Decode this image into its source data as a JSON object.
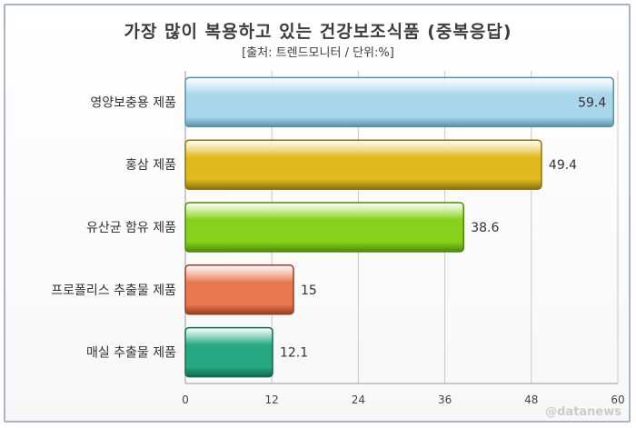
{
  "chart_data": {
    "type": "bar",
    "orientation": "horizontal",
    "title": "가장 많이 복용하고 있는 건강보조식품 (중복응답)",
    "subtitle": "[출처: 트렌드모니터 / 단위:%]",
    "categories": [
      "영양보충용 제품",
      "홍삼 제품",
      "유산균 함유 제품",
      "프로폴리스 추출물 제품",
      "매실 추출물 제품"
    ],
    "values": [
      59.4,
      49.4,
      38.6,
      15,
      12.1
    ],
    "value_labels": [
      "59.4",
      "49.4",
      "38.6",
      "15",
      "12.1"
    ],
    "xlim": [
      0,
      60
    ],
    "xticks": [
      0,
      12,
      24,
      36,
      48,
      60
    ],
    "xtick_labels": [
      "0",
      "12",
      "24",
      "36",
      "48",
      "60"
    ],
    "colors": [
      "#a9d6ea",
      "#e0b91e",
      "#86d11b",
      "#e9774f",
      "#27a883"
    ],
    "border_colors": [
      "#5a8fab",
      "#8c7208",
      "#4b8a06",
      "#9a3d1c",
      "#0f6a50"
    ],
    "grid": true,
    "legend": "none"
  },
  "watermark": "@datanews"
}
